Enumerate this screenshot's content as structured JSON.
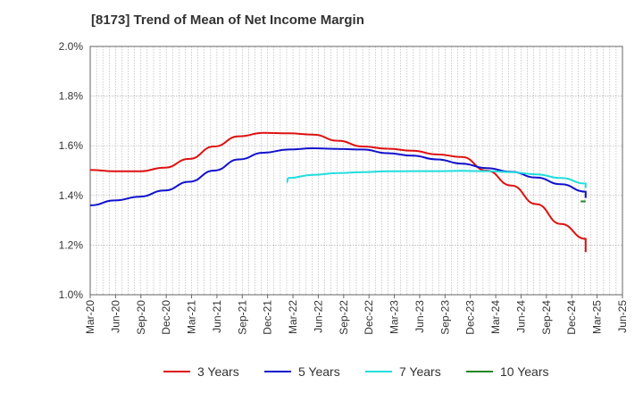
{
  "title": "[8173]  Trend of Mean of Net Income Margin",
  "chart_data": {
    "type": "line",
    "title": "[8173]  Trend of Mean of Net Income Margin",
    "xlabel": "",
    "ylabel": "",
    "x_ticks": [
      "Mar-20",
      "Jun-20",
      "Sep-20",
      "Dec-20",
      "Mar-21",
      "Jun-21",
      "Sep-21",
      "Dec-21",
      "Mar-22",
      "Jun-22",
      "Sep-22",
      "Dec-22",
      "Mar-23",
      "Jun-23",
      "Sep-23",
      "Dec-23",
      "Mar-24",
      "Jun-24",
      "Sep-24",
      "Dec-24",
      "Mar-25",
      "Jun-25"
    ],
    "y_ticks": [
      "1.0%",
      "1.2%",
      "1.4%",
      "1.6%",
      "1.8%",
      "2.0%"
    ],
    "ylim": [
      1.0,
      2.0
    ],
    "grid": true,
    "legend_position": "bottom",
    "series": [
      {
        "name": "3 Years",
        "color": "#dd1111",
        "points": [
          [
            "Mar-20",
            1.503
          ],
          [
            "Jun-20",
            1.497
          ],
          [
            "Sep-20",
            1.497
          ],
          [
            "Dec-20",
            1.512
          ],
          [
            "Mar-21",
            1.547
          ],
          [
            "Jun-21",
            1.597
          ],
          [
            "Sep-21",
            1.638
          ],
          [
            "Dec-21",
            1.652
          ],
          [
            "Mar-22",
            1.65
          ],
          [
            "Jun-22",
            1.645
          ],
          [
            "Sep-22",
            1.62
          ],
          [
            "Dec-22",
            1.597
          ],
          [
            "Mar-23",
            1.588
          ],
          [
            "Jun-23",
            1.58
          ],
          [
            "Sep-23",
            1.565
          ],
          [
            "Dec-23",
            1.555
          ],
          [
            "Mar-24",
            1.5
          ],
          [
            "Jun-24",
            1.44
          ],
          [
            "Sep-24",
            1.365
          ],
          [
            "Dec-24",
            1.285
          ],
          [
            "Mar-25",
            1.225
          ],
          [
            "Mar-25e",
            1.172
          ]
        ]
      },
      {
        "name": "5 Years",
        "color": "#1111cc",
        "points": [
          [
            "Mar-20",
            1.36
          ],
          [
            "Jun-20",
            1.38
          ],
          [
            "Sep-20",
            1.395
          ],
          [
            "Dec-20",
            1.42
          ],
          [
            "Mar-21",
            1.455
          ],
          [
            "Jun-21",
            1.5
          ],
          [
            "Sep-21",
            1.545
          ],
          [
            "Dec-21",
            1.572
          ],
          [
            "Mar-22",
            1.585
          ],
          [
            "Jun-22",
            1.59
          ],
          [
            "Sep-22",
            1.587
          ],
          [
            "Dec-22",
            1.585
          ],
          [
            "Mar-23",
            1.57
          ],
          [
            "Jun-23",
            1.56
          ],
          [
            "Sep-23",
            1.545
          ],
          [
            "Dec-23",
            1.528
          ],
          [
            "Mar-24",
            1.51
          ],
          [
            "Jun-24",
            1.495
          ],
          [
            "Sep-24",
            1.472
          ],
          [
            "Dec-24",
            1.445
          ],
          [
            "Mar-25",
            1.415
          ],
          [
            "Mar-25e",
            1.39
          ]
        ]
      },
      {
        "name": "7 Years",
        "color": "#22dddd",
        "points": [
          [
            "Dec-21e",
            1.452
          ],
          [
            "Mar-22",
            1.47
          ],
          [
            "Jun-22",
            1.483
          ],
          [
            "Sep-22",
            1.49
          ],
          [
            "Dec-22",
            1.494
          ],
          [
            "Mar-23",
            1.497
          ],
          [
            "Jun-23",
            1.498
          ],
          [
            "Sep-23",
            1.498
          ],
          [
            "Dec-23",
            1.499
          ],
          [
            "Mar-24",
            1.498
          ],
          [
            "Jun-24",
            1.494
          ],
          [
            "Sep-24",
            1.485
          ],
          [
            "Dec-24",
            1.47
          ],
          [
            "Mar-25",
            1.448
          ],
          [
            "Mar-25e",
            1.43
          ]
        ]
      },
      {
        "name": "10 Years",
        "color": "#228822",
        "points": [
          [
            "Mar-25a",
            1.376
          ],
          [
            "Mar-25e",
            1.376
          ]
        ]
      }
    ]
  }
}
